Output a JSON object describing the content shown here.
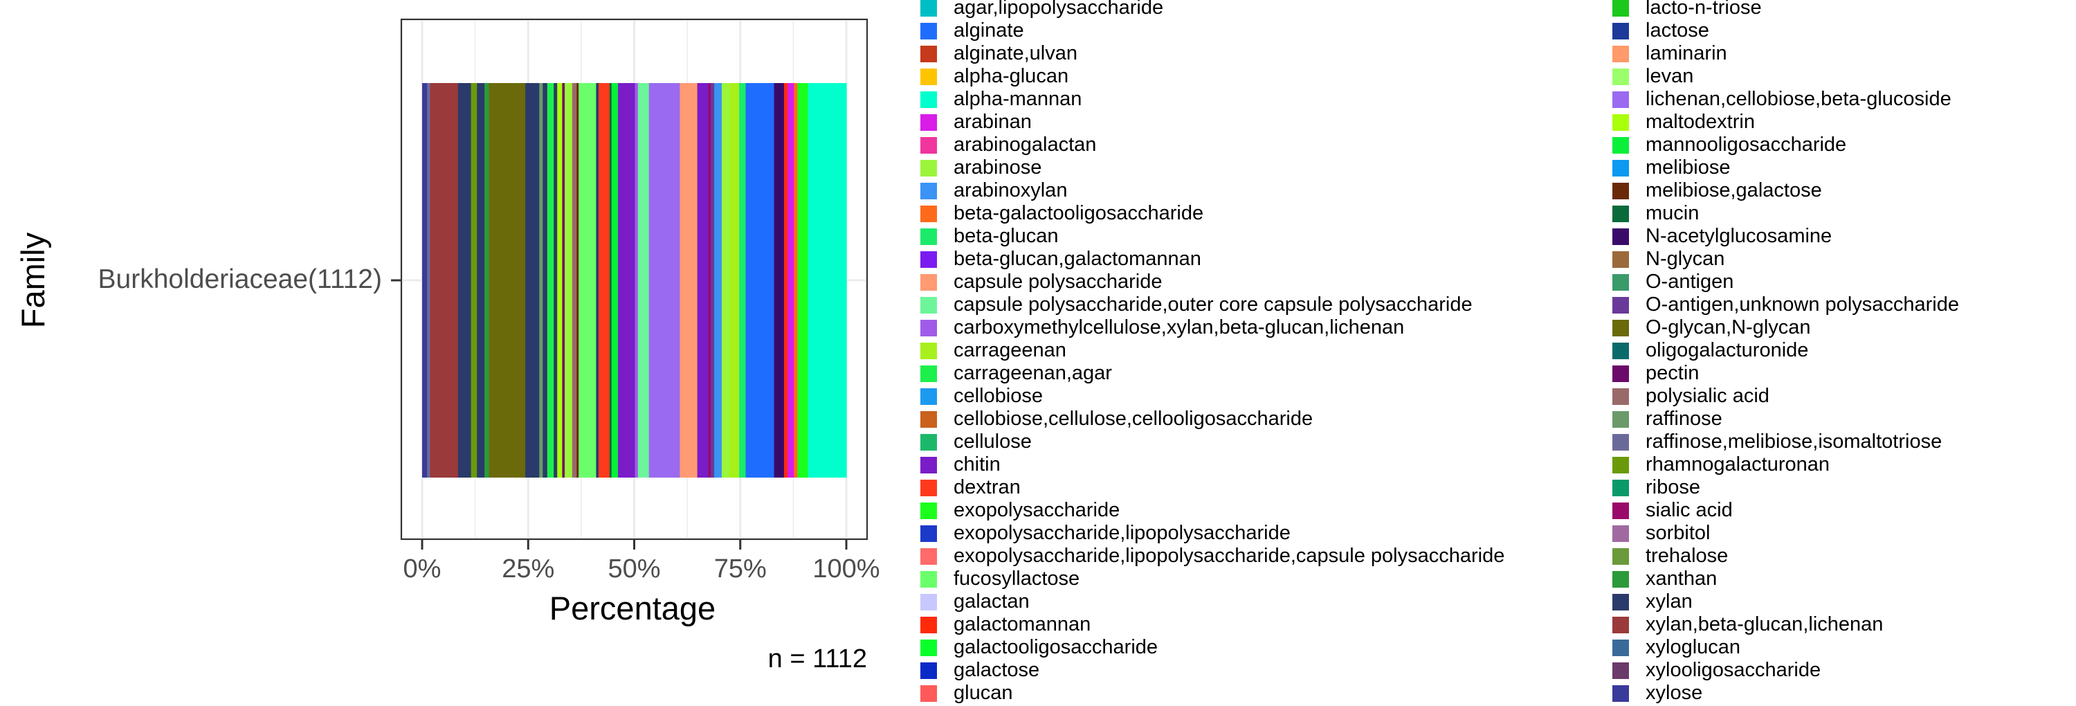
{
  "chart_data": {
    "type": "bar",
    "orientation": "horizontal-stacked",
    "ylabel": "Family",
    "xlabel": "Percentage",
    "categories": [
      "Burkholderiaceae(1112)"
    ],
    "xlim": [
      0,
      100
    ],
    "xticks": [
      "0%",
      "25%",
      "50%",
      "75%",
      "100%"
    ],
    "grid": true,
    "legend": "right",
    "annotation": "n = 1112",
    "legend_entries": [
      {
        "name": "agar,lipopolysaccharide",
        "color": "#00BFC4"
      },
      {
        "name": "alginate",
        "color": "#1F6DFF"
      },
      {
        "name": "alginate,ulvan",
        "color": "#C43A1A"
      },
      {
        "name": "alpha-glucan",
        "color": "#FFC400"
      },
      {
        "name": "alpha-mannan",
        "color": "#00FFCC"
      },
      {
        "name": "arabinan",
        "color": "#D91CE8"
      },
      {
        "name": "arabinogalactan",
        "color": "#F0359E"
      },
      {
        "name": "arabinose",
        "color": "#9BF53A"
      },
      {
        "name": "arabinoxylan",
        "color": "#3A93F5"
      },
      {
        "name": "beta-galactooligosaccharide",
        "color": "#FF6A1A"
      },
      {
        "name": "beta-glucan",
        "color": "#1CEB6A"
      },
      {
        "name": "beta-glucan,galactomannan",
        "color": "#7A1CF0"
      },
      {
        "name": "capsule polysaccharide",
        "color": "#FF9A72"
      },
      {
        "name": "capsule polysaccharide,outer core capsule polysaccharide",
        "color": "#6CF59A"
      },
      {
        "name": "carboxymethylcellulose,xylan,beta-glucan,lichenan",
        "color": "#A05CE8"
      },
      {
        "name": "carrageenan",
        "color": "#A8F01C"
      },
      {
        "name": "carrageenan,agar",
        "color": "#1CF04A"
      },
      {
        "name": "cellobiose",
        "color": "#1C9AF0"
      },
      {
        "name": "cellobiose,cellulose,cellooligosaccharide",
        "color": "#C8621C"
      },
      {
        "name": "cellulose",
        "color": "#1CB86A"
      },
      {
        "name": "chitin",
        "color": "#7A1CC8"
      },
      {
        "name": "dextran",
        "color": "#FF3A1C"
      },
      {
        "name": "exopolysaccharide",
        "color": "#1CFF1C"
      },
      {
        "name": "exopolysaccharide,lipopolysaccharide",
        "color": "#1C3AC8"
      },
      {
        "name": "exopolysaccharide,lipopolysaccharide,capsule polysaccharide",
        "color": "#FF6A6A"
      },
      {
        "name": "fucosyllactose",
        "color": "#6AFF6A"
      },
      {
        "name": "galactan",
        "color": "#C8C8FF"
      },
      {
        "name": "galactomannan",
        "color": "#FF2A0A"
      },
      {
        "name": "galactooligosaccharide",
        "color": "#0AFF2A"
      },
      {
        "name": "galactose",
        "color": "#0A2AC8"
      },
      {
        "name": "glucan",
        "color": "#FF5A5A"
      },
      {
        "name": "lacto-n-triose",
        "color": "#1CC81C"
      },
      {
        "name": "lactose",
        "color": "#1C3A9A"
      },
      {
        "name": "laminarin",
        "color": "#FF9A6A"
      },
      {
        "name": "levan",
        "color": "#9AFF6A"
      },
      {
        "name": "lichenan,cellobiose,beta-glucoside",
        "color": "#9A6AF0"
      },
      {
        "name": "maltodextrin",
        "color": "#AAFF0A"
      },
      {
        "name": "mannooligosaccharide",
        "color": "#0AF03A"
      },
      {
        "name": "melibiose",
        "color": "#0A9AF0"
      },
      {
        "name": "melibiose,galactose",
        "color": "#6A2A0A"
      },
      {
        "name": "mucin",
        "color": "#0A6A3A"
      },
      {
        "name": "N-acetylglucosamine",
        "color": "#3A0A6A"
      },
      {
        "name": "N-glycan",
        "color": "#9A6A3A"
      },
      {
        "name": "O-antigen",
        "color": "#3A9A6A"
      },
      {
        "name": "O-antigen,unknown polysaccharide",
        "color": "#6A3A9A"
      },
      {
        "name": "O-glycan,N-glycan",
        "color": "#6A6A0A"
      },
      {
        "name": "oligogalacturonide",
        "color": "#0A6A6A"
      },
      {
        "name": "pectin",
        "color": "#6A0A6A"
      },
      {
        "name": "polysialic acid",
        "color": "#9A6A6A"
      },
      {
        "name": "raffinose",
        "color": "#6A9A6A"
      },
      {
        "name": "raffinose,melibiose,isomaltotriose",
        "color": "#6A6A9A"
      },
      {
        "name": "rhamnogalacturonan",
        "color": "#6A9A0A"
      },
      {
        "name": "ribose",
        "color": "#0A9A6A"
      },
      {
        "name": "sialic acid",
        "color": "#9A0A6A"
      },
      {
        "name": "sorbitol",
        "color": "#A06AA0"
      },
      {
        "name": "trehalose",
        "color": "#6A9A3A"
      },
      {
        "name": "xanthan",
        "color": "#2A9A3A"
      },
      {
        "name": "xylan",
        "color": "#2A3A6A"
      },
      {
        "name": "xylan,beta-glucan,lichenan",
        "color": "#9A3A3A"
      },
      {
        "name": "xyloglucan",
        "color": "#3A6A9A"
      },
      {
        "name": "xylooligosaccharide",
        "color": "#6A3A6A"
      },
      {
        "name": "xylose",
        "color": "#3A3A9A"
      }
    ],
    "segments": [
      {
        "name": "xylose",
        "value": 1.0
      },
      {
        "name": "raffinose,melibiose,isomaltotriose",
        "value": 0.6
      },
      {
        "name": "xylan,beta-glucan,lichenan",
        "value": 5.6
      },
      {
        "name": "xylan",
        "value": 2.6
      },
      {
        "name": "rhamnogalacturonan",
        "value": 1.2
      },
      {
        "name": "xylan",
        "value": 1.5
      },
      {
        "name": "xanthan",
        "value": 0.9
      },
      {
        "name": "O-glycan,N-glycan",
        "value": 7.3
      },
      {
        "name": "xylan",
        "value": 2.8
      },
      {
        "name": "raffinose",
        "value": 0.7
      },
      {
        "name": "xylan",
        "value": 0.9
      },
      {
        "name": "carrageenan,agar",
        "value": 1.3
      },
      {
        "name": "xylan",
        "value": 0.7
      },
      {
        "name": "maltodextrin",
        "value": 1.0
      },
      {
        "name": "pectin",
        "value": 0.5
      },
      {
        "name": "arabinose",
        "value": 1.5
      },
      {
        "name": "polysialic acid",
        "value": 0.9
      },
      {
        "name": "melibiose,galactose",
        "value": 0.4
      },
      {
        "name": "fucosyllactose",
        "value": 3.5
      },
      {
        "name": "xylan",
        "value": 0.5
      },
      {
        "name": "dextran",
        "value": 2.2
      },
      {
        "name": "mucin",
        "value": 0.4
      },
      {
        "name": "mannooligosaccharide",
        "value": 1.3
      },
      {
        "name": "chitin",
        "value": 3.4
      },
      {
        "name": "carboxymethylcellulose,xylan,beta-glucan,lichenan",
        "value": 0.6
      },
      {
        "name": "capsule polysaccharide,outer core capsule polysaccharide",
        "value": 2.2
      },
      {
        "name": "lichenan,cellobiose,beta-glucoside",
        "value": 6.2
      },
      {
        "name": "capsule polysaccharide",
        "value": 3.5
      },
      {
        "name": "chitin",
        "value": 2.2
      },
      {
        "name": "sialic acid",
        "value": 0.5
      },
      {
        "name": "O-antigen,unknown polysaccharide",
        "value": 0.7
      },
      {
        "name": "arabinoxylan",
        "value": 1.5
      },
      {
        "name": "arabinose",
        "value": 1.5
      },
      {
        "name": "carrageenan",
        "value": 2.0
      },
      {
        "name": "beta-glucan",
        "value": 1.3
      },
      {
        "name": "alginate",
        "value": 5.7
      },
      {
        "name": "N-acetylglucosamine",
        "value": 2.0
      },
      {
        "name": "galactomannan",
        "value": 0.7
      },
      {
        "name": "arabinan",
        "value": 1.3
      },
      {
        "name": "beta-galactooligosaccharide",
        "value": 0.7
      },
      {
        "name": "exopolysaccharide",
        "value": 2.1
      },
      {
        "name": "alpha-mannan",
        "value": 7.7
      }
    ]
  }
}
